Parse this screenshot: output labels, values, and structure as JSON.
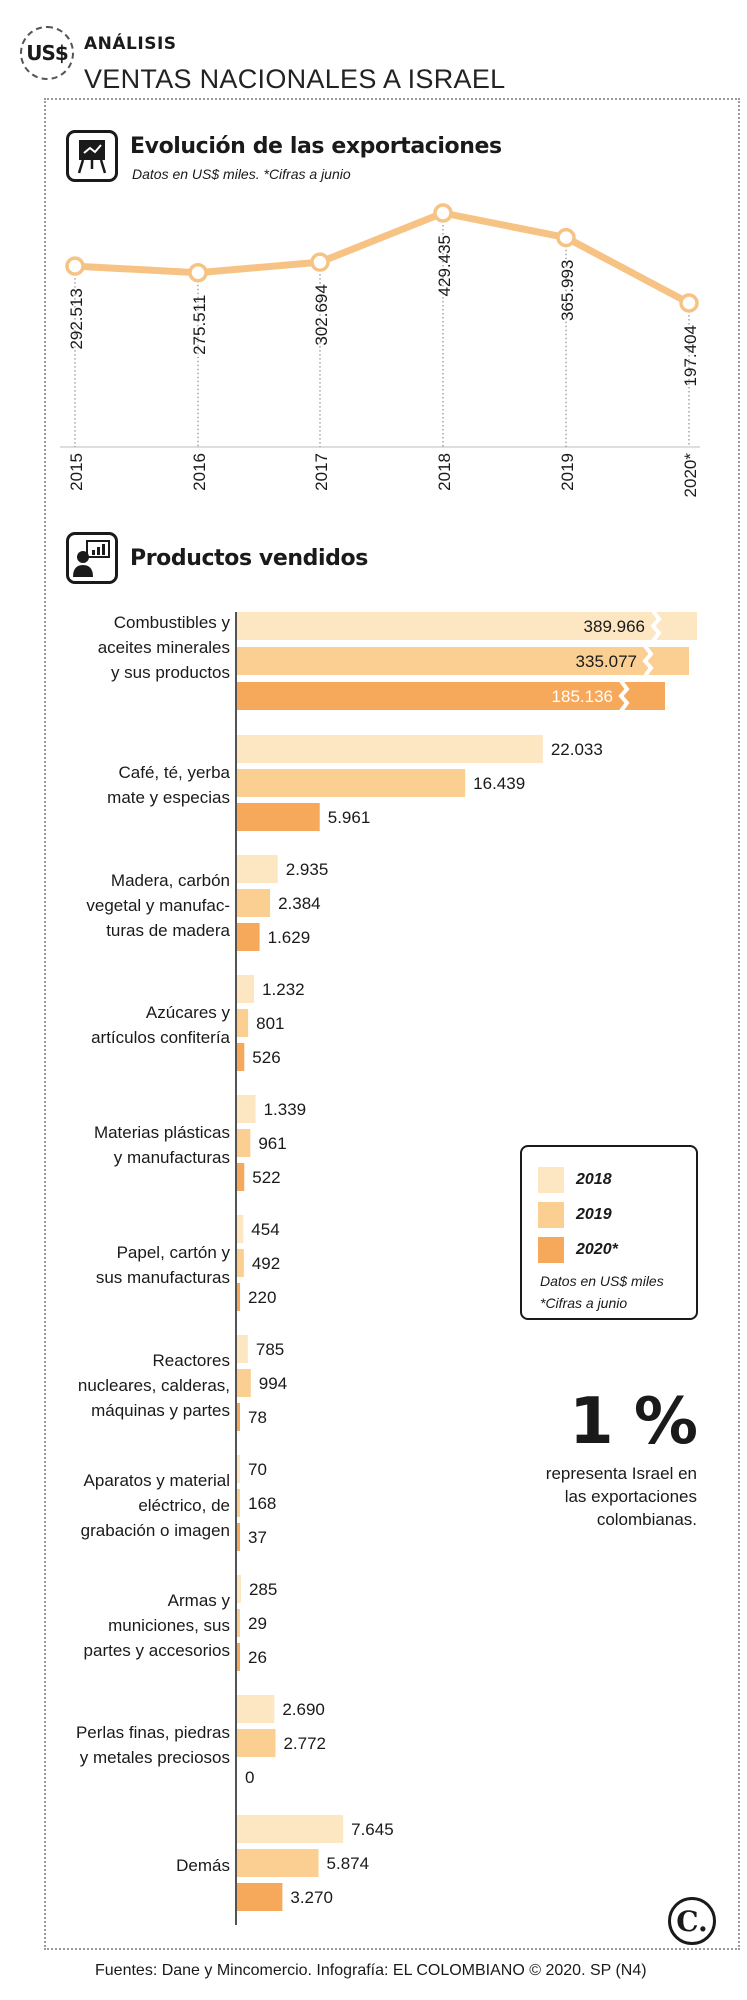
{
  "header": {
    "badge": "US$",
    "section": "ANÁLISIS",
    "title": "VENTAS NACIONALES A ISRAEL"
  },
  "colors": {
    "y2018": "#fde7c2",
    "y2019": "#fbcf92",
    "y2020": "#f6a95a",
    "line": "#f6c384",
    "text": "#1a1a1a"
  },
  "evolution": {
    "title": "Evolución de las exportaciones",
    "subtitle": "Datos en US$ miles. *Cifras a junio",
    "icon": "presentation-board-icon"
  },
  "products": {
    "title": "Productos vendidos",
    "icon": "presenter-screen-icon"
  },
  "chart_data": [
    {
      "type": "line",
      "x": [
        "2015",
        "2016",
        "2017",
        "2018",
        "2019",
        "2020*"
      ],
      "values": [
        292513,
        275511,
        302694,
        429435,
        365993,
        197404
      ],
      "value_labels": [
        "292.513",
        "275.511",
        "302.694",
        "429.435",
        "365.993",
        "197.404"
      ],
      "title": "Evolución de las exportaciones",
      "subtitle": "Datos en US$ miles. *Cifras a junio",
      "grid": false
    },
    {
      "type": "bar",
      "orientation": "horizontal",
      "title": "Productos vendidos",
      "categories": [
        "Combustibles y aceites minerales y sus productos",
        "Café, té, yerba mate y especias",
        "Madera, carbón vegetal y manufacturas de madera",
        "Azúcares y artículos confitería",
        "Materias plásticas y manufacturas",
        "Papel, cartón y sus manufacturas",
        "Reactores nucleares, calderas, máquinas y partes",
        "Aparatos y material eléctrico, de grabación o imagen",
        "Armas y municiones, sus partes y accesorios",
        "Perlas finas, piedras y metales preciosos",
        "Demás"
      ],
      "category_lines": [
        [
          "Combustibles y",
          "aceites minerales",
          "y sus productos"
        ],
        [
          "Café, té, yerba",
          "mate y especias"
        ],
        [
          "Madera, carbón",
          "vegetal y manufac-",
          "turas de madera"
        ],
        [
          "Azúcares y",
          "artículos confitería"
        ],
        [
          "Materias plásticas",
          "y manufacturas"
        ],
        [
          "Papel, cartón y",
          "sus manufacturas"
        ],
        [
          "Reactores",
          "nucleares, calderas,",
          "máquinas y partes"
        ],
        [
          "Aparatos y material",
          "eléctrico, de",
          "grabación o imagen"
        ],
        [
          "Armas y",
          "municiones, sus",
          "partes y accesorios"
        ],
        [
          "Perlas finas, piedras",
          "y metales preciosos"
        ],
        [
          "Demás"
        ]
      ],
      "series": [
        {
          "name": "2018",
          "values": [
            389966,
            22033,
            2935,
            1232,
            1339,
            454,
            785,
            70,
            285,
            2690,
            7645
          ],
          "labels": [
            "389.966",
            "22.033",
            "2.935",
            "1.232",
            "1.339",
            "454",
            "785",
            "70",
            "285",
            "2.690",
            "7.645"
          ]
        },
        {
          "name": "2019",
          "values": [
            335077,
            16439,
            2384,
            801,
            961,
            492,
            994,
            168,
            29,
            2772,
            5874
          ],
          "labels": [
            "335.077",
            "16.439",
            "2.384",
            "801",
            "961",
            "492",
            "994",
            "168",
            "29",
            "2.772",
            "5.874"
          ]
        },
        {
          "name": "2020*",
          "values": [
            185136,
            5961,
            1629,
            526,
            522,
            220,
            78,
            37,
            26,
            0,
            3270
          ],
          "labels": [
            "185.136",
            "5.961",
            "1.629",
            "526",
            "522",
            "220",
            "78",
            "37",
            "26",
            "0",
            "3.270"
          ]
        }
      ],
      "axis_break": "first category bars are truncated with a break",
      "legend": {
        "position": "right",
        "entries": [
          "2018",
          "2019",
          "2020*"
        ],
        "notes": [
          "Datos en US$ miles",
          "*Cifras a junio"
        ]
      }
    }
  ],
  "callout": {
    "value": "1 %",
    "text_lines": [
      "representa Israel en",
      "las exportaciones",
      "colombianas."
    ]
  },
  "corner_logo": "C.",
  "footer": "Fuentes: Dane y Mincomercio. Infografía: EL COLOMBIANO © 2020. SP (N4)"
}
